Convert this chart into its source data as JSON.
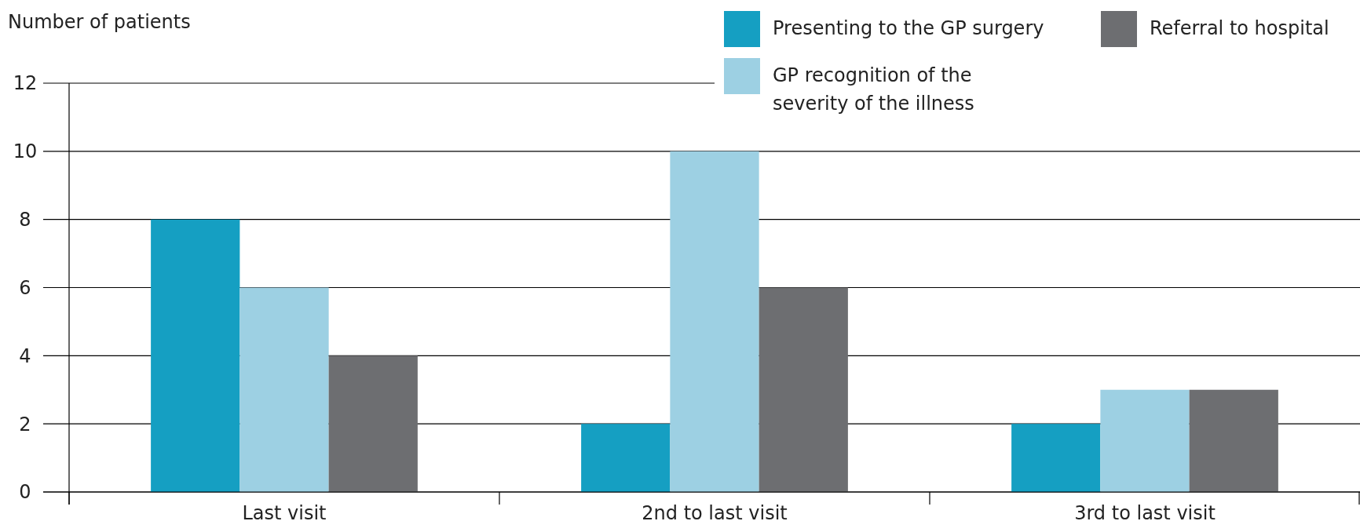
{
  "chart_data": {
    "type": "bar",
    "ylabel": "Number of patients",
    "categories": [
      "Last visit",
      "2nd to last visit",
      "3rd to last visit"
    ],
    "series": [
      {
        "name": "Presenting to the GP surgery",
        "color": "#159fc2",
        "values": [
          8,
          2,
          2
        ]
      },
      {
        "name": "GP recognition of the severity of the illness",
        "color": "#9dd0e3",
        "values": [
          6,
          10,
          3
        ]
      },
      {
        "name": "Referral to hospital",
        "color": "#6d6e71",
        "values": [
          4,
          6,
          3
        ]
      }
    ],
    "ylim": [
      0,
      12
    ],
    "yticks": [
      0,
      2,
      4,
      6,
      8,
      10,
      12
    ],
    "grid": "y",
    "legend": "top right"
  }
}
